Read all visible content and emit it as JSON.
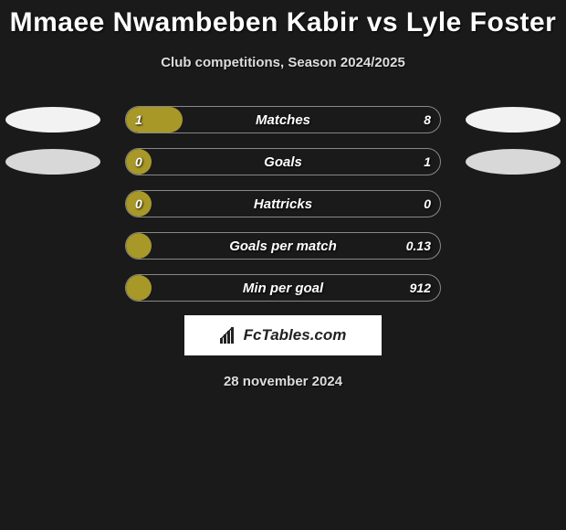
{
  "title": "Mmaee Nwambeben Kabir vs Lyle Foster",
  "subtitle": "Club competitions, Season 2024/2025",
  "date": "28 november 2024",
  "logo_text": "FcTables.com",
  "colors": {
    "background": "#1a1a1a",
    "bar_fill": "#a89828",
    "bar_border": "#888888",
    "ellipse_light": "#f2f2f2",
    "ellipse_dark": "#d8d8d8",
    "text": "#ffffff"
  },
  "stats": [
    {
      "label": "Matches",
      "left_value": "1",
      "right_value": "8",
      "fill_percent": 18,
      "ellipse_left_color": "#f2f2f2",
      "ellipse_right_color": "#f2f2f2",
      "show_ellipses": true
    },
    {
      "label": "Goals",
      "left_value": "0",
      "right_value": "1",
      "fill_percent": 8,
      "ellipse_left_color": "#d8d8d8",
      "ellipse_right_color": "#d8d8d8",
      "show_ellipses": true
    },
    {
      "label": "Hattricks",
      "left_value": "0",
      "right_value": "0",
      "fill_percent": 8,
      "show_ellipses": false
    },
    {
      "label": "Goals per match",
      "left_value": "",
      "right_value": "0.13",
      "fill_percent": 8,
      "show_ellipses": false
    },
    {
      "label": "Min per goal",
      "left_value": "",
      "right_value": "912",
      "fill_percent": 8,
      "show_ellipses": false
    }
  ]
}
